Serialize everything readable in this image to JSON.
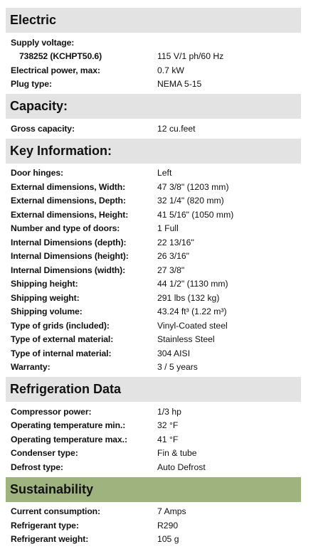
{
  "sections": [
    {
      "title": "Electric",
      "header_color": "#e3e3e3",
      "rows": [
        {
          "label": "Supply voltage:",
          "value": "",
          "indent": false
        },
        {
          "label": "738252 (KCHPT50.6)",
          "value": "115 V/1 ph/60 Hz",
          "indent": true
        },
        {
          "label": "Electrical power, max:",
          "value": "0.7 kW",
          "indent": false
        },
        {
          "label": "Plug type:",
          "value": "NEMA 5-15",
          "indent": false
        }
      ]
    },
    {
      "title": "Capacity:",
      "header_color": "#e3e3e3",
      "rows": [
        {
          "label": "Gross capacity:",
          "value": "12 cu.feet",
          "indent": false
        }
      ]
    },
    {
      "title": "Key Information:",
      "header_color": "#e3e3e3",
      "rows": [
        {
          "label": "Door hinges:",
          "value": "Left",
          "indent": false
        },
        {
          "label": "External dimensions, Width:",
          "value": "47 3/8\" (1203 mm)",
          "indent": false
        },
        {
          "label": "External dimensions, Depth:",
          "value": "32 1/4\" (820 mm)",
          "indent": false
        },
        {
          "label": "External dimensions, Height:",
          "value": "41 5/16\" (1050 mm)",
          "indent": false
        },
        {
          "label": "Number and type of doors:",
          "value": "1 Full",
          "indent": false
        },
        {
          "label": "Internal Dimensions (depth):",
          "value": "22 13/16\"",
          "indent": false
        },
        {
          "label": "Internal Dimensions (height):",
          "value": "26 3/16\"",
          "indent": false
        },
        {
          "label": "Internal Dimensions (width):",
          "value": "27 3/8\"",
          "indent": false
        },
        {
          "label": "Shipping height:",
          "value": "44 1/2\" (1130 mm)",
          "indent": false
        },
        {
          "label": "Shipping weight:",
          "value": "291 lbs (132 kg)",
          "indent": false
        },
        {
          "label": "Shipping volume:",
          "value": "43.24 ft³ (1.22 m³)",
          "indent": false
        },
        {
          "label": "Type of grids (included):",
          "value": "Vinyl-Coated steel",
          "indent": false
        },
        {
          "label": "Type of external material:",
          "value": "Stainless Steel",
          "indent": false
        },
        {
          "label": "Type of internal material:",
          "value": "304 AISI",
          "indent": false
        },
        {
          "label": "Warranty:",
          "value": "3 / 5 years",
          "indent": false
        }
      ]
    },
    {
      "title": "Refrigeration Data",
      "header_color": "#e3e3e3",
      "rows": [
        {
          "label": "Compressor power:",
          "value": "1/3 hp",
          "indent": false
        },
        {
          "label": "Operating temperature min.:",
          "value": "32 °F",
          "indent": false
        },
        {
          "label": "Operating temperature max.:",
          "value": "41 °F",
          "indent": false
        },
        {
          "label": "Condenser type:",
          "value": "Fin & tube",
          "indent": false
        },
        {
          "label": "Defrost type:",
          "value": "Auto Defrost",
          "indent": false
        }
      ]
    },
    {
      "title": "Sustainability",
      "header_color": "#9fb37f",
      "rows": [
        {
          "label": "Current consumption:",
          "value": "7 Amps",
          "indent": false
        },
        {
          "label": "Refrigerant type:",
          "value": "R290",
          "indent": false
        },
        {
          "label": "Refrigerant weight:",
          "value": "105 g",
          "indent": false
        }
      ]
    }
  ]
}
